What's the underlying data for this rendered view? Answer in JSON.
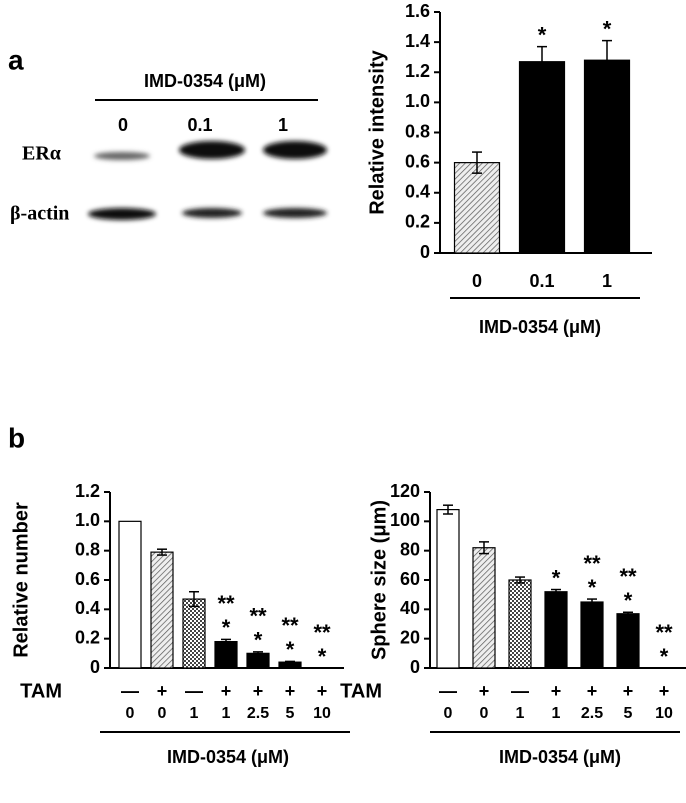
{
  "panels": [
    "a",
    "b"
  ],
  "blot": {
    "title": "IMD-0354 (μM)",
    "lanes": [
      "0",
      "0.1",
      "1"
    ],
    "rows": [
      "ERα",
      "β-actin"
    ]
  },
  "chart_data": [
    {
      "type": "bar",
      "y_label": "Relative intensity",
      "x_label": "IMD-0354 (μM)",
      "categories": [
        "0",
        "0.1",
        "1"
      ],
      "values": [
        0.6,
        1.27,
        1.28
      ],
      "errors": [
        0.07,
        0.1,
        0.13
      ],
      "fills": [
        "hatch",
        "black",
        "black"
      ],
      "stars": [
        [],
        [
          "*"
        ],
        [
          "*"
        ]
      ],
      "ylim": [
        0,
        1.6
      ],
      "yticks": [
        0,
        0.2,
        0.4,
        0.6,
        0.8,
        {
          "value": 1,
          "label": "1.0"
        },
        1.2,
        1.4,
        1.6
      ]
    },
    {
      "type": "bar",
      "y_label": "Relative number",
      "x_label": "IMD-0354 (μM)",
      "row_label": "TAM",
      "tam": [
        "—",
        "+",
        "—",
        "+",
        "+",
        "+",
        "+"
      ],
      "categories": [
        "0",
        "0",
        "1",
        "1",
        "2.5",
        "5",
        "10"
      ],
      "values": [
        1.0,
        0.79,
        0.47,
        0.18,
        0.1,
        0.04,
        0
      ],
      "errors": [
        null,
        0.02,
        0.05,
        0.015,
        0.01,
        0.005,
        null
      ],
      "fills": [
        "white",
        "hatch",
        "checker",
        "black",
        "black",
        "black",
        "black"
      ],
      "stars": [
        [],
        [],
        [],
        [
          "**",
          "*"
        ],
        [
          "**",
          "*"
        ],
        [
          "**",
          "*"
        ],
        [
          "**",
          "*"
        ]
      ],
      "ylim": [
        0,
        1.2
      ],
      "yticks": [
        0,
        0.2,
        0.4,
        0.6,
        0.8,
        {
          "value": 1,
          "label": "1.0"
        },
        1.2
      ]
    },
    {
      "type": "bar",
      "y_label": "Sphere size (μm)",
      "x_label": "IMD-0354 (μM)",
      "row_label": "TAM",
      "tam": [
        "—",
        "+",
        "—",
        "+",
        "+",
        "+",
        "+"
      ],
      "categories": [
        "0",
        "0",
        "1",
        "1",
        "2.5",
        "5",
        "10"
      ],
      "values": [
        108,
        82,
        60,
        52,
        45,
        37,
        0
      ],
      "errors": [
        3,
        4,
        2,
        1.5,
        2,
        1,
        null
      ],
      "fills": [
        "white",
        "hatch",
        "checker",
        "black",
        "black",
        "black",
        "black"
      ],
      "stars": [
        [],
        [],
        [],
        [
          "*"
        ],
        [
          "**",
          "*"
        ],
        [
          "**",
          "*"
        ],
        [
          "**",
          "*"
        ]
      ],
      "ylim": [
        0,
        120
      ],
      "yticks": [
        0,
        20,
        40,
        60,
        80,
        100,
        120
      ]
    }
  ]
}
